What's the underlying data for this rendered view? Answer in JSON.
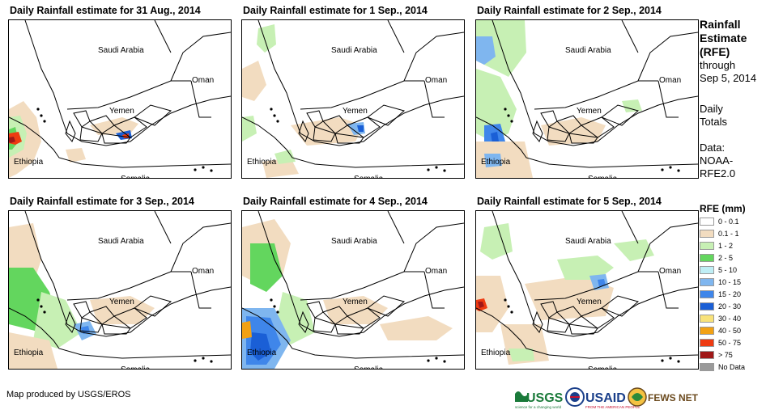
{
  "panels": [
    {
      "title": "Daily Rainfall estimate for 31 Aug., 2014"
    },
    {
      "title": "Daily Rainfall estimate for 1 Sep., 2014"
    },
    {
      "title": "Daily Rainfall estimate for 2 Sep., 2014"
    },
    {
      "title": "Daily Rainfall estimate for 3 Sep., 2014"
    },
    {
      "title": "Daily Rainfall estimate for 4 Sep., 2014"
    },
    {
      "title": "Daily Rainfall estimate for 5 Sep., 2014"
    }
  ],
  "map_labels": {
    "saudi": "Saudi Arabia",
    "oman": "Oman",
    "yemen": "Yemen",
    "ethiopia": "Ethiopia",
    "somalia": "Somalia"
  },
  "sidebar": {
    "title_lines": [
      "Rainfall",
      "Estimate",
      "(RFE)"
    ],
    "through": "through",
    "date": "Sep 5, 2014",
    "daily": "Daily",
    "totals": "Totals",
    "data_label": "Data:",
    "source_1": "NOAA-",
    "source_2": "RFE2.0"
  },
  "legend": {
    "title": "RFE (mm)",
    "items": [
      {
        "label": "0 - 0.1",
        "color": "#ffffff"
      },
      {
        "label": "0.1 - 1",
        "color": "#f2dcc0"
      },
      {
        "label": "1 - 2",
        "color": "#c7f0b4"
      },
      {
        "label": "2 - 5",
        "color": "#63d65e"
      },
      {
        "label": "5 - 10",
        "color": "#bfeef5"
      },
      {
        "label": "10 - 15",
        "color": "#7fb6ef"
      },
      {
        "label": "15 - 20",
        "color": "#3f86ea"
      },
      {
        "label": "20 - 30",
        "color": "#1a5fd6"
      },
      {
        "label": "30 - 40",
        "color": "#f8e27a"
      },
      {
        "label": "40 - 50",
        "color": "#f2a114"
      },
      {
        "label": "50 - 75",
        "color": "#ee3b12"
      },
      {
        "label": "> 75",
        "color": "#a01818"
      },
      {
        "label": "No Data",
        "color": "#9a9a9a"
      }
    ]
  },
  "footer": {
    "credit": "Map produced by USGS/EROS",
    "usgs": "USGS",
    "usgs_tagline": "science for a changing world",
    "usaid": "USAID",
    "usaid_tagline": "FROM THE AMERICAN PEOPLE",
    "fewsnet": "FEWS NET"
  }
}
